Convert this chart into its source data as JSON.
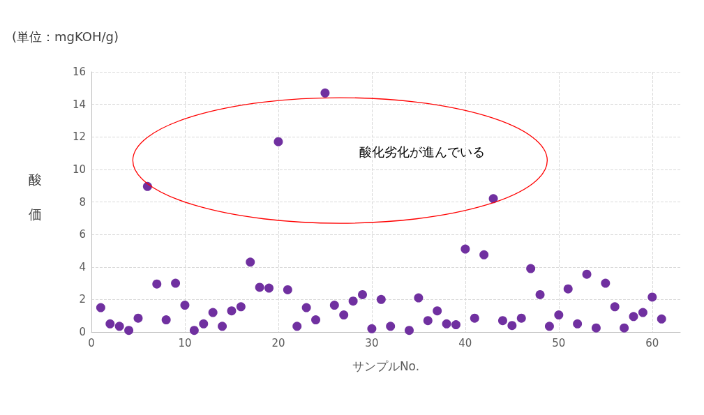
{
  "chart_data": {
    "type": "scatter",
    "title": "(単位：mgKOH/g)",
    "xlabel": "サンプルNo.",
    "ylabel": "酸価",
    "annotations": [
      "酸化劣化が進んでいる"
    ],
    "x": [
      1,
      2,
      3,
      4,
      5,
      6,
      7,
      8,
      9,
      10,
      11,
      12,
      13,
      14,
      15,
      16,
      17,
      18,
      19,
      20,
      21,
      22,
      23,
      24,
      25,
      26,
      27,
      28,
      29,
      30,
      31,
      32,
      34,
      35,
      36,
      37,
      38,
      39,
      40,
      41,
      42,
      43,
      44,
      45,
      46,
      47,
      48,
      49,
      50,
      51,
      52,
      53,
      54,
      55,
      56,
      57,
      58,
      59,
      60,
      61
    ],
    "values": [
      1.5,
      0.5,
      0.35,
      0.1,
      0.85,
      8.95,
      2.95,
      0.75,
      3.0,
      1.65,
      0.1,
      0.5,
      1.2,
      0.35,
      1.3,
      1.55,
      4.3,
      2.75,
      2.7,
      11.7,
      2.6,
      0.35,
      1.5,
      0.75,
      14.7,
      1.65,
      1.05,
      1.9,
      2.3,
      0.2,
      2.0,
      0.35,
      0.1,
      2.1,
      0.7,
      1.3,
      0.5,
      0.45,
      5.1,
      0.85,
      4.75,
      8.2,
      0.7,
      0.4,
      0.85,
      3.9,
      2.3,
      0.35,
      1.05,
      2.65,
      0.5,
      3.55,
      0.25,
      3.0,
      1.55,
      0.25,
      0.95,
      1.2,
      2.15,
      0.8
    ],
    "color": "#7030a0",
    "marker": "circle",
    "grid": true,
    "xlim": [
      0,
      63
    ],
    "xticks": [
      0,
      10,
      20,
      30,
      40,
      50,
      60
    ],
    "ylim": [
      0,
      16
    ],
    "yticks": [
      0,
      2,
      4,
      6,
      8,
      10,
      12,
      14,
      16
    ]
  }
}
